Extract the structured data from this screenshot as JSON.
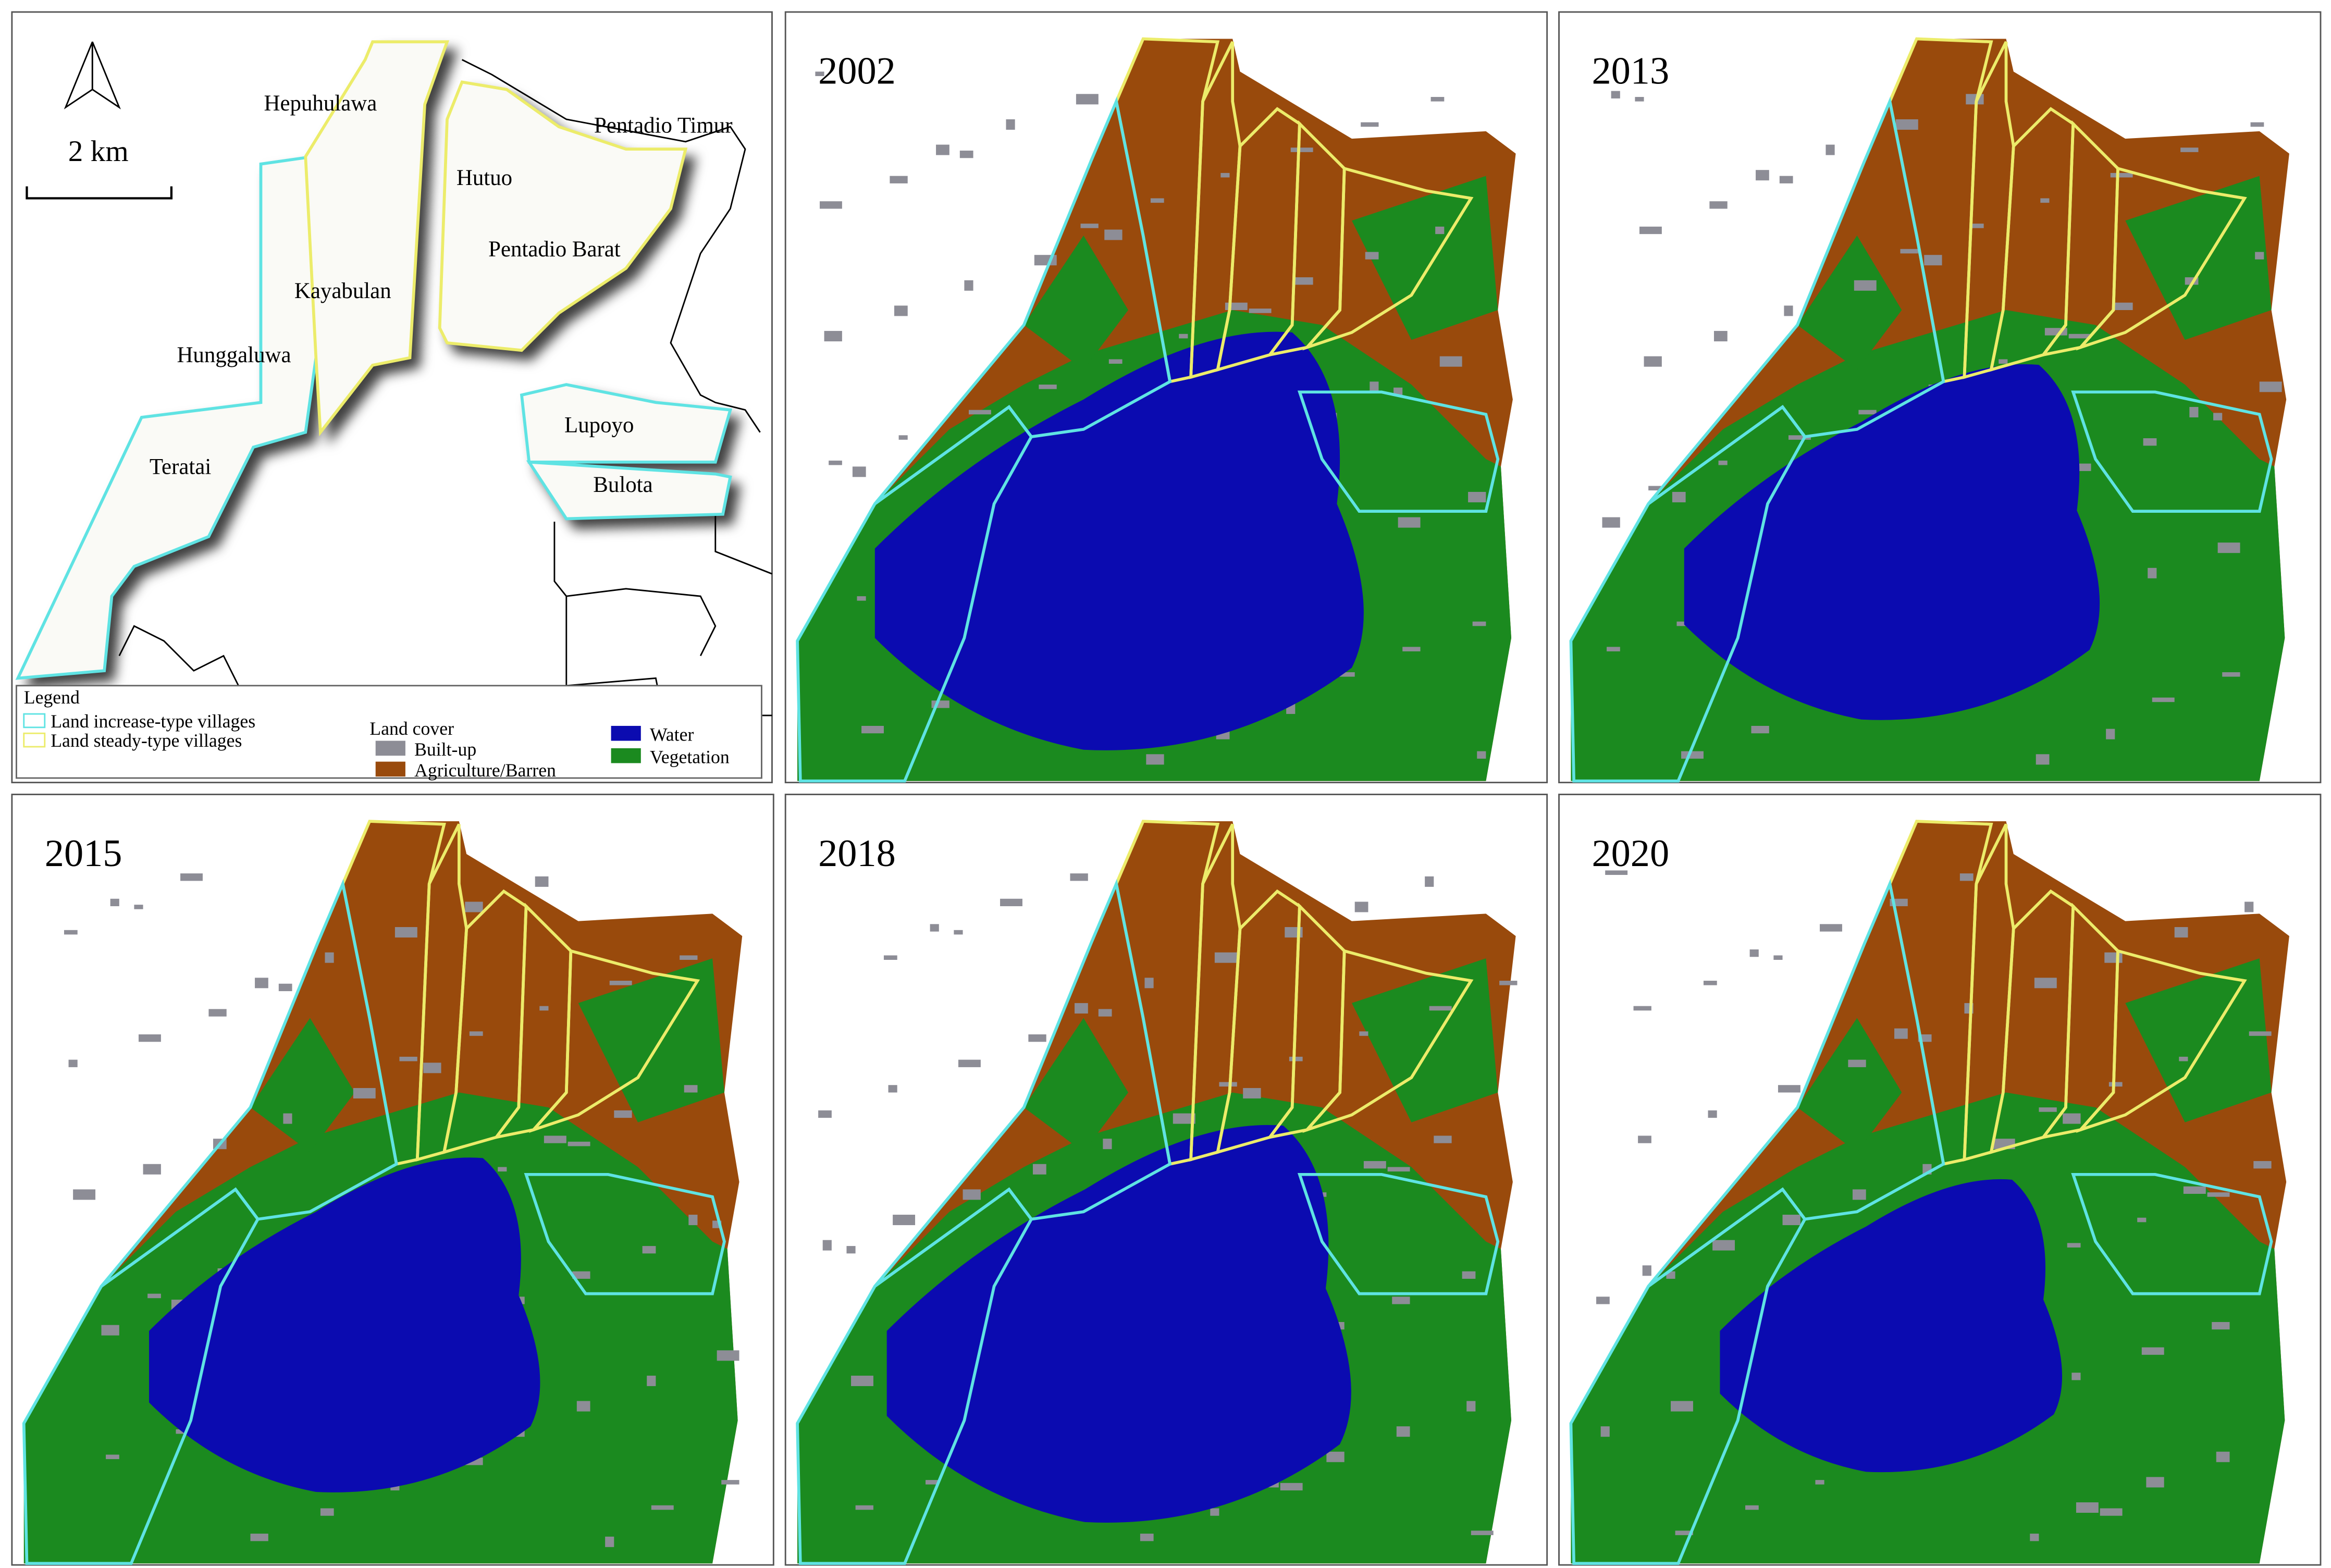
{
  "scale_bar": "2 km",
  "villages": [
    "Hepuhulawa",
    "Hutuo",
    "Pentadio Timur",
    "Kayabulan",
    "Pentadio Barat",
    "Hunggaluwa",
    "Lupoyo",
    "Teratai",
    "Bulota"
  ],
  "legend": {
    "title": "Legend",
    "village_types": [
      {
        "label": "Land increase-type villages",
        "color": "#5fe3e3"
      },
      {
        "label": "Land steady-type villages",
        "color": "#ecec6a"
      }
    ],
    "land_cover_title": "Land cover",
    "land_cover": [
      {
        "label": "Built-up",
        "color": "#8d8d96"
      },
      {
        "label": "Agriculture/Barren",
        "color": "#994a0c"
      },
      {
        "label": "Water",
        "color": "#0b0bb0"
      },
      {
        "label": "Vegetation",
        "color": "#1b8a1f"
      }
    ]
  },
  "panels": [
    "2002",
    "2013",
    "2015",
    "2018",
    "2020"
  ]
}
